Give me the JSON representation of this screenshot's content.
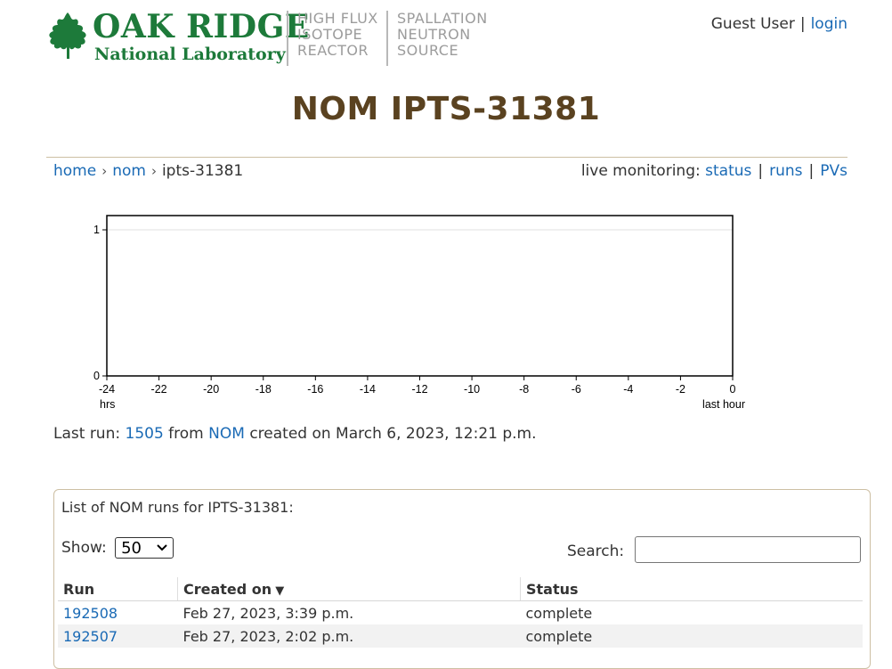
{
  "header": {
    "logo": {
      "line1": "OAK RIDGE",
      "line2": "National Laboratory"
    },
    "facility1": [
      "HIGH FLUX",
      "ISOTOPE",
      "REACTOR"
    ],
    "facility2": [
      "SPALLATION",
      "NEUTRON",
      "SOURCE"
    ],
    "user": {
      "name": "Guest User",
      "separator": "|",
      "login": "login"
    }
  },
  "page_title": "NOM IPTS-31381",
  "breadcrumb": {
    "home": "home",
    "sep": "›",
    "instrument": "nom",
    "current": "ipts-31381"
  },
  "live_monitoring": {
    "label": "live monitoring:",
    "status": "status",
    "runs": "runs",
    "pvs": "PVs",
    "separator": "|"
  },
  "chart_data": {
    "type": "line",
    "x_ticks": [
      "-24",
      "-22",
      "-20",
      "-18",
      "-16",
      "-14",
      "-12",
      "-10",
      "-8",
      "-6",
      "-4",
      "-2",
      "0"
    ],
    "y_ticks": [
      "0",
      "1"
    ],
    "x_label_left": "hrs",
    "x_label_right": "last hour",
    "xlim": [
      -24,
      0
    ],
    "ylim": [
      0,
      1
    ],
    "series": []
  },
  "last_run": {
    "prefix": "Last run:",
    "run": "1505",
    "from": "from",
    "instrument": "NOM",
    "created": "created on March 6, 2023, 12:21 p.m."
  },
  "run_list": {
    "title": "List of NOM runs for IPTS-31381:",
    "show_label": "Show:",
    "show_value": "50",
    "search_label": "Search:",
    "search_value": "",
    "columns": {
      "run": "Run",
      "created": "Created on",
      "sort_indicator": "▼",
      "status": "Status"
    },
    "rows": [
      {
        "run": "192508",
        "created": "Feb 27, 2023, 3:39 p.m.",
        "status": "complete"
      },
      {
        "run": "192507",
        "created": "Feb 27, 2023, 2:02 p.m.",
        "status": "complete"
      }
    ]
  },
  "colors": {
    "logo_green": "#1d7a3a",
    "title_brown": "#5a4220",
    "link_blue": "#1a6ab5",
    "status_green": "#3c9a3c"
  }
}
